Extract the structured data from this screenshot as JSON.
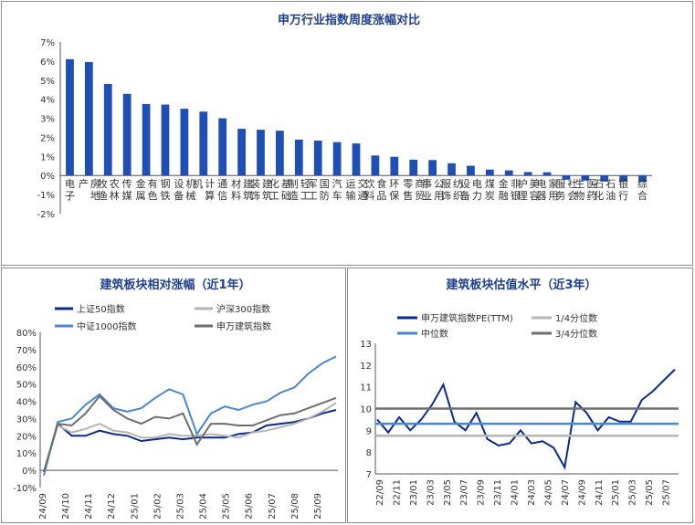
{
  "chart_data": [
    {
      "type": "bar",
      "title": "申万行业指数周度涨幅对比",
      "ylim": [
        -0.02,
        0.07
      ],
      "y_ticks": [
        "7%",
        "6%",
        "5%",
        "4%",
        "3%",
        "2%",
        "1%",
        "0%",
        "-1%",
        "-2%"
      ],
      "categories": [
        "电子",
        "房地产",
        "农林牧渔",
        "传媒",
        "有色金属",
        "钢铁",
        "机械设备",
        "计算机",
        "通信",
        "建筑材料",
        "建筑装饰",
        "基础化工",
        "轻工制造",
        "国防军工",
        "汽车",
        "交通运输",
        "食品饮料",
        "环保",
        "商贸零售",
        "公用事业",
        "纺织服饰",
        "电力设备",
        "煤炭",
        "非银金融",
        "美容护理",
        "家用电器",
        "社会服务",
        "医药生物",
        "石油石化",
        "银行",
        "综合"
      ],
      "values": [
        0.061,
        0.0595,
        0.048,
        0.0428,
        0.0375,
        0.0372,
        0.035,
        0.0335,
        0.03,
        0.0245,
        0.024,
        0.0235,
        0.0188,
        0.0183,
        0.0175,
        0.0168,
        0.0105,
        0.0098,
        0.0083,
        0.0081,
        0.0064,
        0.0051,
        0.0031,
        0.0027,
        0.0018,
        0.0017,
        -0.0022,
        -0.0027,
        -0.0032,
        -0.0032,
        -0.0033
      ],
      "color": "#1f4fb4"
    },
    {
      "type": "line",
      "title": "建筑板块相对涨幅（近1年）",
      "ylim": [
        -0.1,
        0.8
      ],
      "y_ticks": [
        "80%",
        "70%",
        "60%",
        "50%",
        "40%",
        "30%",
        "20%",
        "10%",
        "0%",
        "-10%"
      ],
      "x_ticks": [
        "24/09",
        "24/10",
        "24/11",
        "24/12",
        "25/01",
        "25/02",
        "25/03",
        "25/04",
        "25/05",
        "25/06",
        "25/07",
        "25/08",
        "25/09"
      ],
      "series": [
        {
          "name": "上证50指数",
          "color": "#0b2a8c",
          "values": [
            -0.01,
            0.27,
            0.2,
            0.2,
            0.23,
            0.21,
            0.2,
            0.17,
            0.18,
            0.19,
            0.18,
            0.19,
            0.19,
            0.19,
            0.21,
            0.22,
            0.26,
            0.27,
            0.28,
            0.3,
            0.33,
            0.35
          ]
        },
        {
          "name": "沪深300指数",
          "color": "#b5b5b5",
          "values": [
            -0.01,
            0.26,
            0.22,
            0.24,
            0.27,
            0.23,
            0.22,
            0.19,
            0.19,
            0.21,
            0.2,
            0.2,
            0.21,
            0.2,
            0.19,
            0.22,
            0.23,
            0.25,
            0.27,
            0.3,
            0.34,
            0.39
          ]
        },
        {
          "name": "中证1000指数",
          "color": "#4a86d4",
          "values": [
            -0.03,
            0.28,
            0.3,
            0.38,
            0.44,
            0.36,
            0.34,
            0.36,
            0.42,
            0.47,
            0.44,
            0.21,
            0.33,
            0.37,
            0.35,
            0.38,
            0.4,
            0.45,
            0.48,
            0.56,
            0.62,
            0.66
          ]
        },
        {
          "name": "申万建筑指数",
          "color": "#6e6e6e",
          "values": [
            -0.01,
            0.27,
            0.26,
            0.33,
            0.43,
            0.35,
            0.3,
            0.27,
            0.31,
            0.3,
            0.33,
            0.15,
            0.27,
            0.27,
            0.26,
            0.26,
            0.29,
            0.32,
            0.33,
            0.36,
            0.39,
            0.42
          ]
        }
      ]
    },
    {
      "type": "line",
      "title": "建筑板块估值水平（近3年）",
      "ylim": [
        7,
        13
      ],
      "y_ticks": [
        "13",
        "12",
        "11",
        "10",
        "9",
        "8",
        "7"
      ],
      "x_ticks": [
        "22/09",
        "22/11",
        "23/01",
        "23/03",
        "23/05",
        "23/07",
        "23/09",
        "23/11",
        "24/01",
        "24/03",
        "24/05",
        "24/07",
        "24/09",
        "24/11",
        "25/01",
        "25/03",
        "25/05",
        "25/07"
      ],
      "series": [
        {
          "name": "申万建筑指数PE(TTM)",
          "color": "#0b2a8c",
          "values": [
            9.5,
            8.9,
            9.6,
            9.0,
            9.5,
            10.2,
            11.1,
            9.4,
            9.0,
            9.8,
            8.6,
            8.3,
            8.4,
            9.0,
            8.4,
            8.5,
            8.2,
            7.3,
            10.3,
            9.8,
            9.0,
            9.6,
            9.4,
            9.4,
            10.4,
            10.8,
            11.3,
            11.8
          ]
        },
        {
          "name": "1/4分位数",
          "color": "#b5b5b5",
          "constant": 8.75
        },
        {
          "name": "中位数",
          "color": "#4a86d4",
          "constant": 9.3
        },
        {
          "name": "3/4分位数",
          "color": "#6e6e6e",
          "constant": 10.0
        }
      ]
    }
  ]
}
